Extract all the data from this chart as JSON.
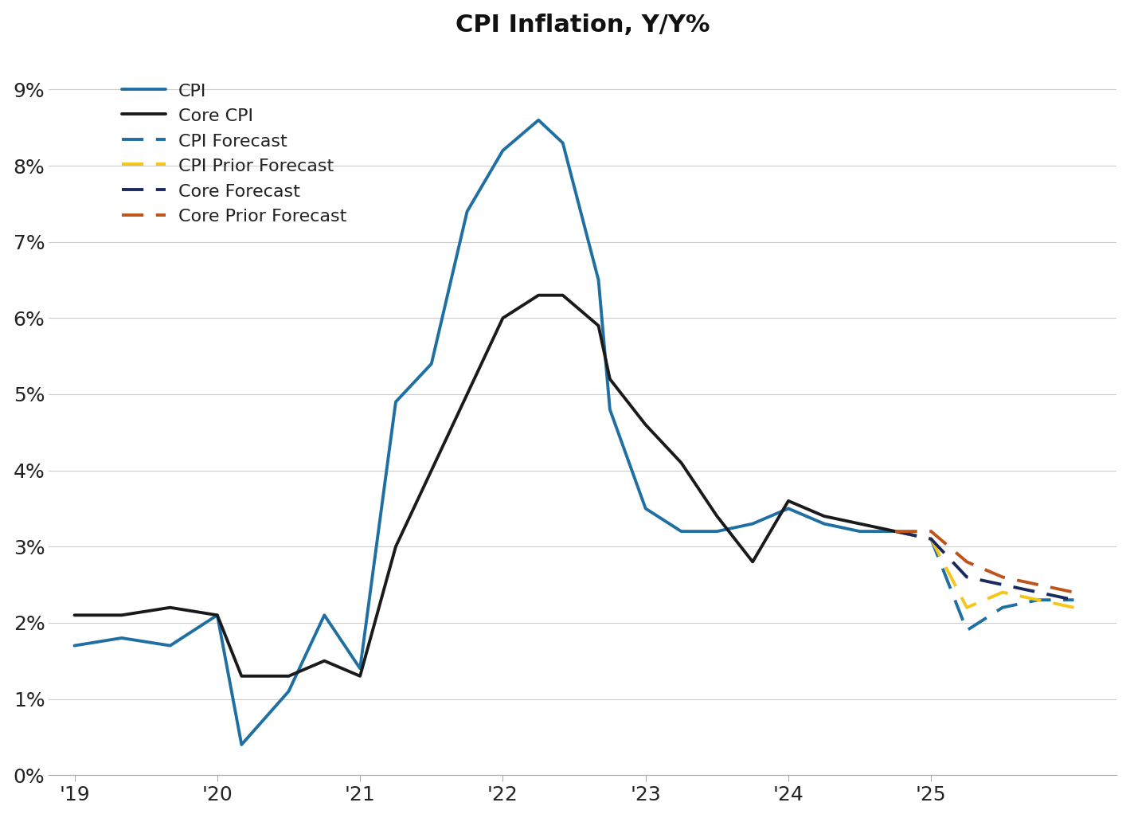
{
  "title": "CPI Inflation, Y/Y%",
  "title_fontsize": 22,
  "title_fontweight": "bold",
  "background_color": "#ffffff",
  "grid_color": "#cccccc",
  "ylim": [
    0,
    0.095
  ],
  "yticks": [
    0,
    0.01,
    0.02,
    0.03,
    0.04,
    0.05,
    0.06,
    0.07,
    0.08,
    0.09
  ],
  "ytick_labels": [
    "0%",
    "1%",
    "2%",
    "3%",
    "4%",
    "5%",
    "6%",
    "7%",
    "8%",
    "9%"
  ],
  "xtick_labels": [
    "'19",
    "'20",
    "'21",
    "'22",
    "'23",
    "'24",
    "'25"
  ],
  "cpi_x": [
    2019.0,
    2019.33,
    2019.67,
    2020.0,
    2020.17,
    2020.5,
    2020.75,
    2021.0,
    2021.25,
    2021.5,
    2021.75,
    2022.0,
    2022.25,
    2022.42,
    2022.67,
    2022.75,
    2023.0,
    2023.25,
    2023.5,
    2023.75,
    2024.0,
    2024.25,
    2024.5,
    2024.75
  ],
  "cpi_y": [
    0.017,
    0.018,
    0.017,
    0.021,
    0.004,
    0.011,
    0.021,
    0.014,
    0.049,
    0.054,
    0.074,
    0.082,
    0.086,
    0.083,
    0.065,
    0.048,
    0.035,
    0.032,
    0.032,
    0.033,
    0.035,
    0.033,
    0.032,
    0.032
  ],
  "core_cpi_x": [
    2019.0,
    2019.33,
    2019.67,
    2020.0,
    2020.17,
    2020.5,
    2020.75,
    2021.0,
    2021.25,
    2021.5,
    2021.75,
    2022.0,
    2022.25,
    2022.42,
    2022.67,
    2022.75,
    2023.0,
    2023.25,
    2023.5,
    2023.75,
    2024.0,
    2024.25,
    2024.5,
    2024.75
  ],
  "core_cpi_y": [
    0.021,
    0.021,
    0.022,
    0.021,
    0.013,
    0.013,
    0.015,
    0.013,
    0.03,
    0.04,
    0.05,
    0.06,
    0.063,
    0.063,
    0.059,
    0.052,
    0.046,
    0.041,
    0.034,
    0.028,
    0.036,
    0.034,
    0.033,
    0.032
  ],
  "cpi_forecast_x": [
    2024.75,
    2025.0,
    2025.25,
    2025.5,
    2025.75,
    2026.0
  ],
  "cpi_forecast_y": [
    0.032,
    0.031,
    0.019,
    0.022,
    0.023,
    0.023
  ],
  "cpi_prior_forecast_x": [
    2024.75,
    2025.0,
    2025.25,
    2025.5,
    2025.75,
    2026.0
  ],
  "cpi_prior_forecast_y": [
    0.032,
    0.031,
    0.022,
    0.024,
    0.023,
    0.022
  ],
  "core_forecast_x": [
    2024.75,
    2025.0,
    2025.25,
    2025.5,
    2025.75,
    2026.0
  ],
  "core_forecast_y": [
    0.032,
    0.031,
    0.026,
    0.025,
    0.024,
    0.023
  ],
  "core_prior_forecast_x": [
    2024.75,
    2025.0,
    2025.25,
    2025.5,
    2025.75,
    2026.0
  ],
  "core_prior_forecast_y": [
    0.032,
    0.032,
    0.028,
    0.026,
    0.025,
    0.024
  ],
  "cpi_color": "#1f6fa3",
  "core_cpi_color": "#1a1a1a",
  "cpi_forecast_color": "#1f6fa3",
  "cpi_prior_forecast_color": "#f5c518",
  "core_forecast_color": "#1a2a5e",
  "core_prior_forecast_color": "#c0531a",
  "linewidth": 2.8,
  "dash_linewidth": 2.8,
  "legend_fontsize": 16,
  "tick_fontsize": 18
}
